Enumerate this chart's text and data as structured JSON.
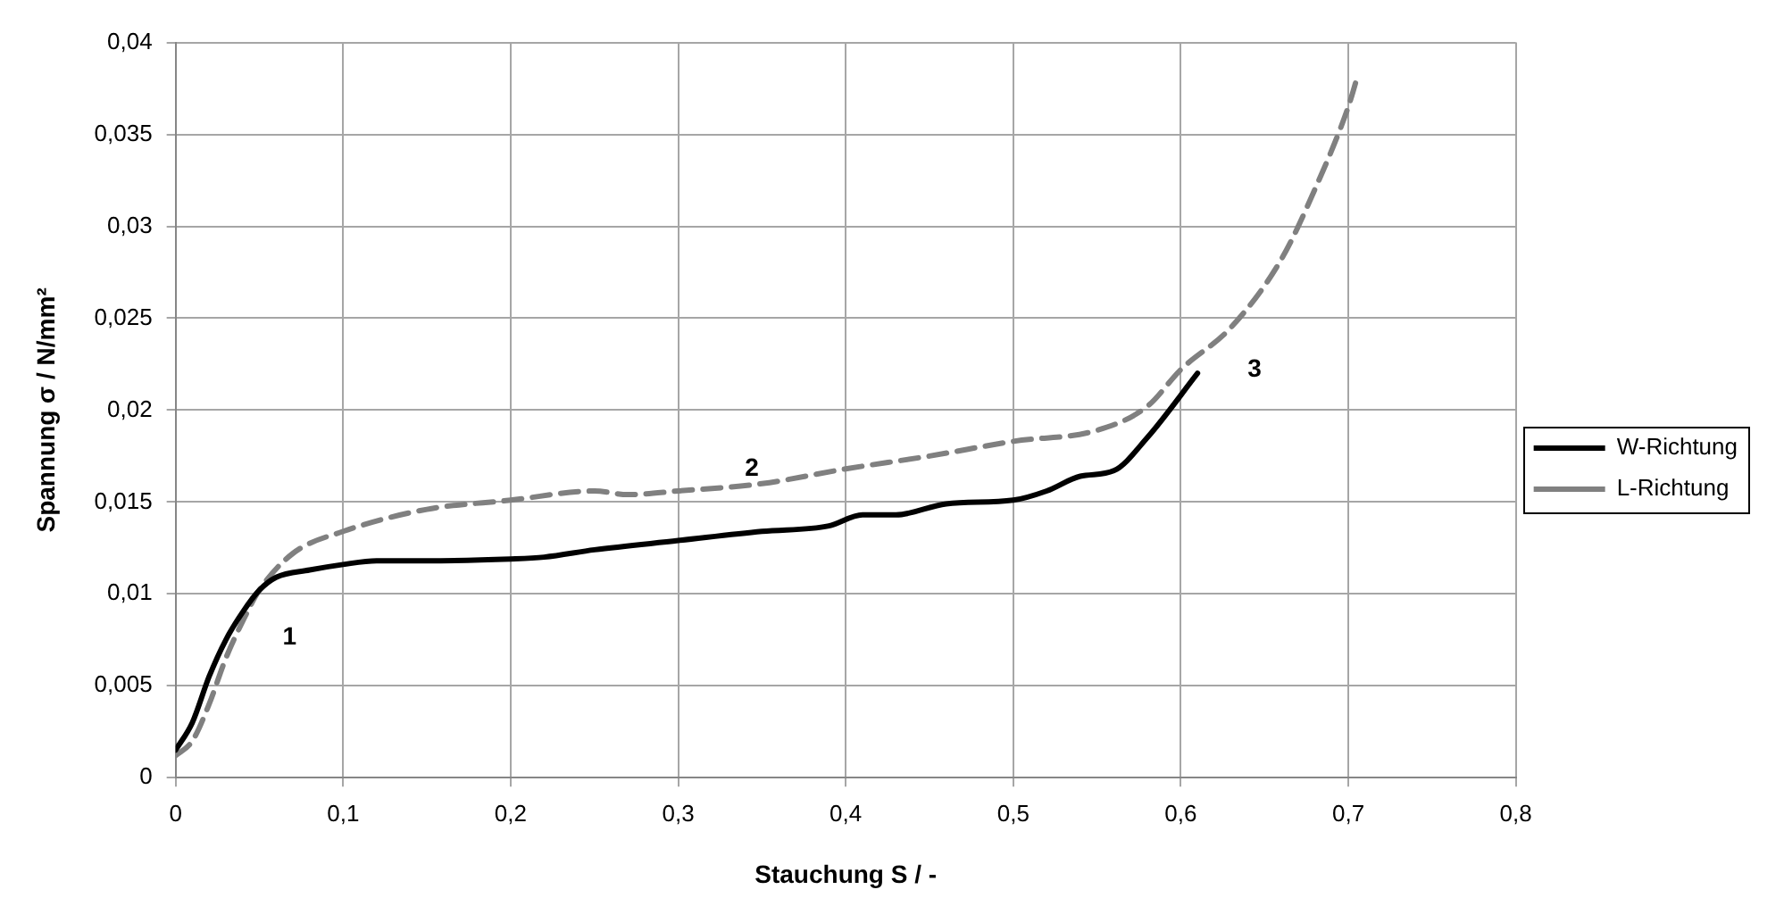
{
  "chart_data": {
    "type": "line",
    "xlabel": "Stauchung S / -",
    "ylabel": "Spannung σ / N/mm²",
    "xlim": [
      0,
      0.8
    ],
    "xticks": [
      0,
      {
        "value": 0.1,
        "label": "0,1"
      },
      {
        "value": 0.2,
        "label": "0,2"
      },
      {
        "value": 0.3,
        "label": "0,3"
      },
      {
        "value": 0.4,
        "label": "0,4"
      },
      {
        "value": 0.5,
        "label": "0,5"
      },
      {
        "value": 0.6,
        "label": "0,6"
      },
      {
        "value": 0.7,
        "label": "0,7"
      },
      {
        "value": 0.8,
        "label": "0,8"
      }
    ],
    "ylim": [
      0,
      0.04
    ],
    "yticks": [
      0,
      {
        "value": 0.005,
        "label": "0,005"
      },
      {
        "value": 0.01,
        "label": "0,01"
      },
      {
        "value": 0.015,
        "label": "0,015"
      },
      {
        "value": 0.02,
        "label": "0,02"
      },
      {
        "value": 0.025,
        "label": "0,025"
      },
      {
        "value": 0.03,
        "label": "0,03"
      },
      {
        "value": 0.035,
        "label": "0,035"
      },
      {
        "value": 0.04,
        "label": "0,04"
      }
    ],
    "grid": true,
    "legend": "right",
    "marker": "none",
    "series": [
      {
        "name": "W-Richtung",
        "color": "#000000",
        "line_style": "solid",
        "x": [
          0,
          0.01,
          0.02,
          0.03,
          0.04,
          0.05,
          0.06,
          0.08,
          0.1,
          0.12,
          0.15,
          0.2,
          0.22,
          0.25,
          0.3,
          0.35,
          0.39,
          0.41,
          0.43,
          0.46,
          0.5,
          0.52,
          0.54,
          0.56,
          0.58,
          0.61
        ],
        "values": [
          0.0015,
          0.003,
          0.0055,
          0.0075,
          0.009,
          0.0102,
          0.0109,
          0.0113,
          0.0116,
          0.0118,
          0.0118,
          0.0119,
          0.012,
          0.0124,
          0.0129,
          0.0134,
          0.0137,
          0.0143,
          0.0143,
          0.0149,
          0.0151,
          0.0156,
          0.0164,
          0.0167,
          0.0185,
          0.022
        ]
      },
      {
        "name": "L-Richtung",
        "color": "#808080",
        "line_style": "dashed",
        "x": [
          0,
          0.01,
          0.02,
          0.03,
          0.04,
          0.05,
          0.07,
          0.1,
          0.15,
          0.2,
          0.25,
          0.27,
          0.3,
          0.35,
          0.4,
          0.45,
          0.5,
          0.55,
          0.58,
          0.6,
          0.63,
          0.66,
          0.68,
          0.7,
          0.705
        ],
        "values": [
          0.0012,
          0.002,
          0.004,
          0.0065,
          0.0085,
          0.0102,
          0.0122,
          0.0134,
          0.0146,
          0.0151,
          0.0156,
          0.0154,
          0.0156,
          0.016,
          0.0168,
          0.0175,
          0.0183,
          0.0189,
          0.0202,
          0.0222,
          0.0245,
          0.0282,
          0.032,
          0.0365,
          0.038
        ]
      }
    ],
    "annotations": [
      "1",
      "2",
      "3"
    ]
  }
}
